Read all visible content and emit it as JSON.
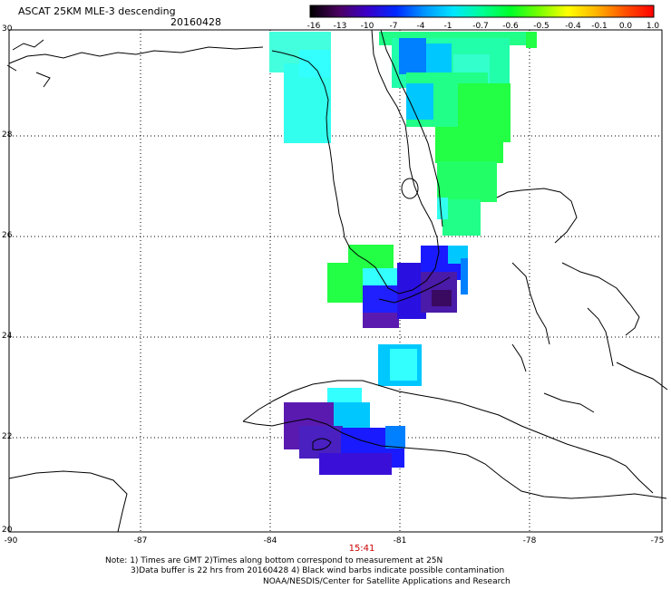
{
  "header": {
    "title": "ASCAT 25KM MLE-3 descending",
    "date": "20160428"
  },
  "colorbar": {
    "labels": [
      "-16",
      "-13",
      "-10",
      "-7",
      "-4",
      "-1",
      "-0.7",
      "-0.6",
      "-0.5",
      "-0.4",
      "-0.1",
      "0.0",
      "1.0"
    ],
    "colors": [
      "#000000",
      "#4b0060",
      "#3a00c8",
      "#0028ff",
      "#0096ff",
      "#00e6ff",
      "#00ff96",
      "#00ff28",
      "#78ff00",
      "#ffff00",
      "#ffb400",
      "#ff5000",
      "#ff0000"
    ]
  },
  "axes": {
    "y_ticks": [
      "30",
      "28",
      "26",
      "24",
      "22",
      "20"
    ],
    "x_ticks": [
      "-90",
      "-87",
      "-84",
      "-81",
      "-78",
      "-75"
    ]
  },
  "time_label": "15:41",
  "notes": {
    "line1": "Note: 1) Times are GMT 2)Times along bottom correspond to measurement at 25N",
    "line2": "3)Data buffer is 22 hrs from 20160428 4) Black wind barbs indicate possible contamination",
    "credit": "NOAA/NESDIS/Center for Satellite Applications and Research"
  },
  "swath_colors": {
    "cyan": "#33ffff",
    "light_blue": "#00c8ff",
    "mid_blue": "#0080ff",
    "blue": "#1a1aff",
    "violet": "#3a10d8",
    "purple": "#5a1ab0",
    "dark_purple": "#3a0a60",
    "green": "#22ff44",
    "aqua_green": "#22ffaa"
  }
}
